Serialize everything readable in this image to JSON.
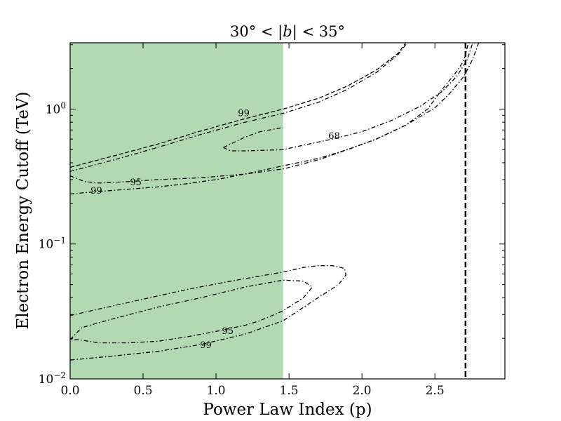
{
  "chart_data": {
    "type": "line",
    "title_parts": [
      "30°",
      " < |",
      "b",
      "| < ",
      "35°"
    ],
    "xlabel": "Power Law Index (p)",
    "ylabel": "Electron Energy Cutoff (TeV)",
    "xlim": [
      0.0,
      2.98
    ],
    "ylim": [
      0.01,
      3.1
    ],
    "yscale": "log",
    "x_ticks": [
      0.0,
      0.5,
      1.0,
      1.5,
      2.0,
      2.5
    ],
    "x_tick_labels": [
      "0.0",
      "0.5",
      "1.0",
      "1.5",
      "2.0",
      "2.5"
    ],
    "y_major_ticks": [
      0.01,
      0.1,
      1.0
    ],
    "y_tick_labels": [
      {
        "base": "10",
        "exp": "−2"
      },
      {
        "base": "10",
        "exp": "−1"
      },
      {
        "base": "10",
        "exp": "0"
      }
    ],
    "shaded_region": {
      "x_from": 0.0,
      "x_to": 1.46,
      "color": "#b2d9b2"
    },
    "vertical_line": {
      "x": 2.71,
      "style": "dashed",
      "color": "#000000"
    },
    "series": [
      {
        "level": "68",
        "style": "dashdot",
        "points": [
          [
            1.05,
            0.52
          ],
          [
            1.1,
            0.49
          ],
          [
            1.2,
            0.49
          ],
          [
            1.46,
            0.5
          ],
          [
            1.6,
            0.54
          ],
          [
            1.8,
            0.6
          ],
          [
            2.0,
            0.68
          ],
          [
            2.2,
            0.82
          ],
          [
            2.4,
            1.05
          ],
          [
            2.55,
            1.35
          ],
          [
            2.65,
            1.75
          ],
          [
            2.72,
            2.3
          ],
          [
            2.76,
            3.1
          ]
        ]
      },
      {
        "level": "99",
        "style": "dashdot",
        "points": [
          [
            1.05,
            0.52
          ],
          [
            1.2,
            0.62
          ],
          [
            1.3,
            0.68
          ],
          [
            1.46,
            0.73
          ]
        ]
      },
      {
        "level": "99",
        "style": "dashed",
        "points": [
          [
            0.0,
            0.37
          ],
          [
            0.3,
            0.45
          ],
          [
            0.6,
            0.55
          ],
          [
            0.9,
            0.69
          ],
          [
            1.2,
            0.85
          ],
          [
            1.46,
            1.0
          ],
          [
            1.7,
            1.2
          ],
          [
            1.9,
            1.48
          ],
          [
            2.1,
            1.95
          ],
          [
            2.25,
            2.6
          ],
          [
            2.3,
            3.1
          ]
        ]
      },
      {
        "level": "95",
        "style": "dashdot",
        "points": [
          [
            0.0,
            0.345
          ],
          [
            0.3,
            0.42
          ],
          [
            0.6,
            0.52
          ],
          [
            0.9,
            0.65
          ],
          [
            1.2,
            0.8
          ],
          [
            1.46,
            0.93
          ],
          [
            1.7,
            1.12
          ],
          [
            1.9,
            1.4
          ],
          [
            2.1,
            1.87
          ],
          [
            2.25,
            2.55
          ],
          [
            2.31,
            3.1
          ]
        ]
      },
      {
        "level": "95",
        "style": "dashdot",
        "points": [
          [
            0.0,
            0.32
          ],
          [
            0.1,
            0.29
          ],
          [
            0.2,
            0.283
          ],
          [
            0.4,
            0.29
          ],
          [
            0.6,
            0.3
          ],
          [
            0.9,
            0.31
          ],
          [
            1.2,
            0.33
          ],
          [
            1.46,
            0.36
          ],
          [
            1.7,
            0.42
          ],
          [
            1.9,
            0.5
          ],
          [
            2.1,
            0.6
          ],
          [
            2.3,
            0.76
          ],
          [
            2.45,
            1.0
          ],
          [
            2.55,
            1.4
          ],
          [
            2.65,
            1.9
          ],
          [
            2.7,
            2.3
          ],
          [
            2.73,
            3.1
          ]
        ]
      },
      {
        "level": "99",
        "style": "dashdot",
        "points": [
          [
            0.0,
            0.235
          ],
          [
            0.2,
            0.245
          ],
          [
            0.4,
            0.255
          ],
          [
            0.6,
            0.265
          ],
          [
            0.8,
            0.28
          ],
          [
            1.0,
            0.3
          ],
          [
            1.2,
            0.33
          ],
          [
            1.46,
            0.38
          ],
          [
            1.7,
            0.43
          ],
          [
            1.9,
            0.5
          ],
          [
            2.1,
            0.6
          ],
          [
            2.3,
            0.76
          ],
          [
            2.5,
            1.02
          ],
          [
            2.6,
            1.3
          ],
          [
            2.7,
            1.75
          ],
          [
            2.76,
            2.35
          ],
          [
            2.8,
            3.1
          ]
        ]
      },
      {
        "level": "95",
        "style": "dashdot",
        "points": [
          [
            0.0,
            0.0195
          ],
          [
            0.08,
            0.024
          ],
          [
            0.3,
            0.028
          ],
          [
            0.6,
            0.034
          ],
          [
            0.9,
            0.04
          ],
          [
            1.2,
            0.048
          ],
          [
            1.46,
            0.054
          ],
          [
            1.6,
            0.053
          ],
          [
            1.66,
            0.048
          ],
          [
            1.6,
            0.04
          ],
          [
            1.46,
            0.032
          ],
          [
            1.3,
            0.027
          ],
          [
            1.2,
            0.025
          ],
          [
            1.0,
            0.0225
          ],
          [
            0.8,
            0.0205
          ],
          [
            0.6,
            0.019
          ],
          [
            0.4,
            0.0185
          ],
          [
            0.2,
            0.0185
          ],
          [
            0.06,
            0.0195
          ],
          [
            0.0,
            0.0195
          ]
        ]
      },
      {
        "level": "99",
        "style": "dashdot",
        "points": [
          [
            0.0,
            0.0295
          ],
          [
            0.2,
            0.033
          ],
          [
            0.5,
            0.039
          ],
          [
            0.8,
            0.046
          ],
          [
            1.1,
            0.053
          ],
          [
            1.46,
            0.062
          ],
          [
            1.6,
            0.067
          ],
          [
            1.7,
            0.069
          ],
          [
            1.8,
            0.069
          ],
          [
            1.88,
            0.066
          ],
          [
            1.89,
            0.059
          ],
          [
            1.84,
            0.05
          ],
          [
            1.7,
            0.04
          ],
          [
            1.46,
            0.027
          ],
          [
            1.2,
            0.0215
          ],
          [
            0.9,
            0.018
          ],
          [
            0.6,
            0.016
          ],
          [
            0.3,
            0.0148
          ],
          [
            0.0,
            0.0138
          ]
        ]
      }
    ],
    "contour_labels": [
      {
        "text": "99",
        "x": 1.19,
        "y": 0.93
      },
      {
        "text": "68",
        "x": 1.81,
        "y": 0.63
      },
      {
        "text": "95",
        "x": 0.45,
        "y": 0.286
      },
      {
        "text": "99",
        "x": 0.18,
        "y": 0.248
      },
      {
        "text": "95",
        "x": 1.08,
        "y": 0.0226
      },
      {
        "text": "99",
        "x": 0.93,
        "y": 0.0178
      }
    ]
  }
}
